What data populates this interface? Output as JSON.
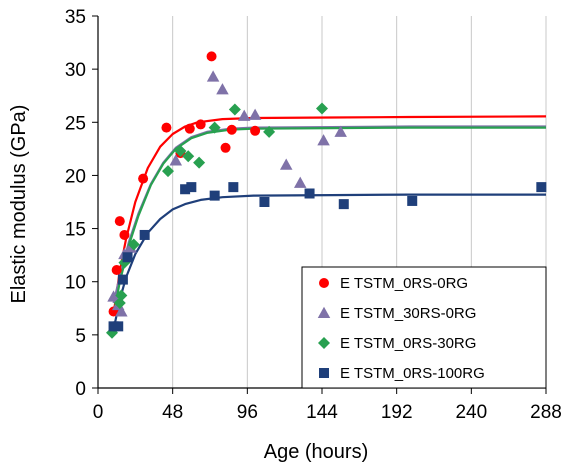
{
  "chart_data": {
    "type": "scatter",
    "title": "",
    "xlabel": "Age (hours)",
    "ylabel": "Elastic modulus (GPa)",
    "xlim": [
      0,
      288
    ],
    "ylim": [
      0,
      35
    ],
    "xticks": [
      0,
      48,
      96,
      144,
      192,
      240,
      288
    ],
    "yticks": [
      0,
      5,
      10,
      15,
      20,
      25,
      30,
      35
    ],
    "grid": "vertical",
    "legend_position": "bottom-right",
    "series": [
      {
        "name": "E TSTM_0RS-0RG",
        "color": "#ff0000",
        "marker": "circle",
        "points": [
          [
            10,
            7.2
          ],
          [
            12,
            11.1
          ],
          [
            14,
            15.7
          ],
          [
            17,
            14.4
          ],
          [
            29,
            19.7
          ],
          [
            44,
            24.5
          ],
          [
            53,
            22.1
          ],
          [
            59,
            24.4
          ],
          [
            66,
            24.8
          ],
          [
            73,
            31.2
          ],
          [
            82,
            22.6
          ],
          [
            86,
            24.3
          ],
          [
            101,
            24.2
          ]
        ],
        "fit": [
          [
            10,
            7.0
          ],
          [
            14,
            11.0
          ],
          [
            18,
            14.0
          ],
          [
            24,
            17.5
          ],
          [
            32,
            20.7
          ],
          [
            40,
            22.7
          ],
          [
            48,
            23.9
          ],
          [
            56,
            24.6
          ],
          [
            64,
            25.0
          ],
          [
            80,
            25.3
          ],
          [
            100,
            25.4
          ],
          [
            150,
            25.45
          ],
          [
            200,
            25.5
          ],
          [
            288,
            25.55
          ]
        ]
      },
      {
        "name": "E TSTM_30RS-0RG",
        "color": "#7f72a8",
        "marker": "triangle",
        "points": [
          [
            10,
            8.6
          ],
          [
            13,
            7.8
          ],
          [
            15,
            7.2
          ],
          [
            17,
            12.6
          ],
          [
            21,
            13.2
          ],
          [
            50,
            21.4
          ],
          [
            74,
            29.3
          ],
          [
            80,
            28.1
          ],
          [
            94,
            25.6
          ],
          [
            101,
            25.7
          ],
          [
            121,
            21.0
          ],
          [
            130,
            19.3
          ],
          [
            145,
            23.3
          ],
          [
            156,
            24.1
          ]
        ],
        "fit": [
          [
            10,
            8.0
          ],
          [
            14,
            10.5
          ],
          [
            20,
            13.8
          ],
          [
            26,
            16.4
          ],
          [
            34,
            19.2
          ],
          [
            42,
            21.2
          ],
          [
            50,
            22.6
          ],
          [
            60,
            23.6
          ],
          [
            70,
            24.1
          ],
          [
            85,
            24.4
          ],
          [
            100,
            24.5
          ],
          [
            150,
            24.55
          ],
          [
            200,
            24.6
          ],
          [
            288,
            24.6
          ]
        ]
      },
      {
        "name": "E TSTM_0RS-30RG",
        "color": "#28a050",
        "marker": "diamond",
        "points": [
          [
            9,
            5.2
          ],
          [
            14,
            8.0
          ],
          [
            15,
            8.7
          ],
          [
            17,
            11.8
          ],
          [
            23,
            13.5
          ],
          [
            45,
            20.4
          ],
          [
            53,
            22.3
          ],
          [
            58,
            21.8
          ],
          [
            65,
            21.2
          ],
          [
            75,
            24.5
          ],
          [
            88,
            26.2
          ],
          [
            110,
            24.1
          ],
          [
            144,
            26.3
          ]
        ],
        "fit": [
          [
            10,
            6.8
          ],
          [
            14,
            10.0
          ],
          [
            20,
            13.5
          ],
          [
            26,
            16.2
          ],
          [
            34,
            19.1
          ],
          [
            42,
            21.1
          ],
          [
            50,
            22.5
          ],
          [
            60,
            23.5
          ],
          [
            70,
            24.0
          ],
          [
            85,
            24.3
          ],
          [
            100,
            24.4
          ],
          [
            150,
            24.45
          ],
          [
            200,
            24.5
          ],
          [
            288,
            24.5
          ]
        ]
      },
      {
        "name": "E TSTM_0RS-100RG",
        "color": "#1f3f7a",
        "marker": "square",
        "points": [
          [
            10,
            5.8
          ],
          [
            13,
            5.8
          ],
          [
            16,
            10.2
          ],
          [
            19,
            12.3
          ],
          [
            30,
            14.4
          ],
          [
            56,
            18.7
          ],
          [
            60,
            18.9
          ],
          [
            75,
            18.1
          ],
          [
            87,
            18.9
          ],
          [
            107,
            17.5
          ],
          [
            136,
            18.3
          ],
          [
            158,
            17.3
          ],
          [
            202,
            17.6
          ],
          [
            285,
            18.9
          ]
        ],
        "fit": [
          [
            10,
            5.5
          ],
          [
            14,
            8.3
          ],
          [
            18,
            10.4
          ],
          [
            24,
            12.6
          ],
          [
            32,
            14.6
          ],
          [
            40,
            15.9
          ],
          [
            48,
            16.8
          ],
          [
            56,
            17.3
          ],
          [
            66,
            17.7
          ],
          [
            80,
            17.95
          ],
          [
            100,
            18.1
          ],
          [
            150,
            18.15
          ],
          [
            200,
            18.2
          ],
          [
            288,
            18.2
          ]
        ]
      }
    ]
  }
}
